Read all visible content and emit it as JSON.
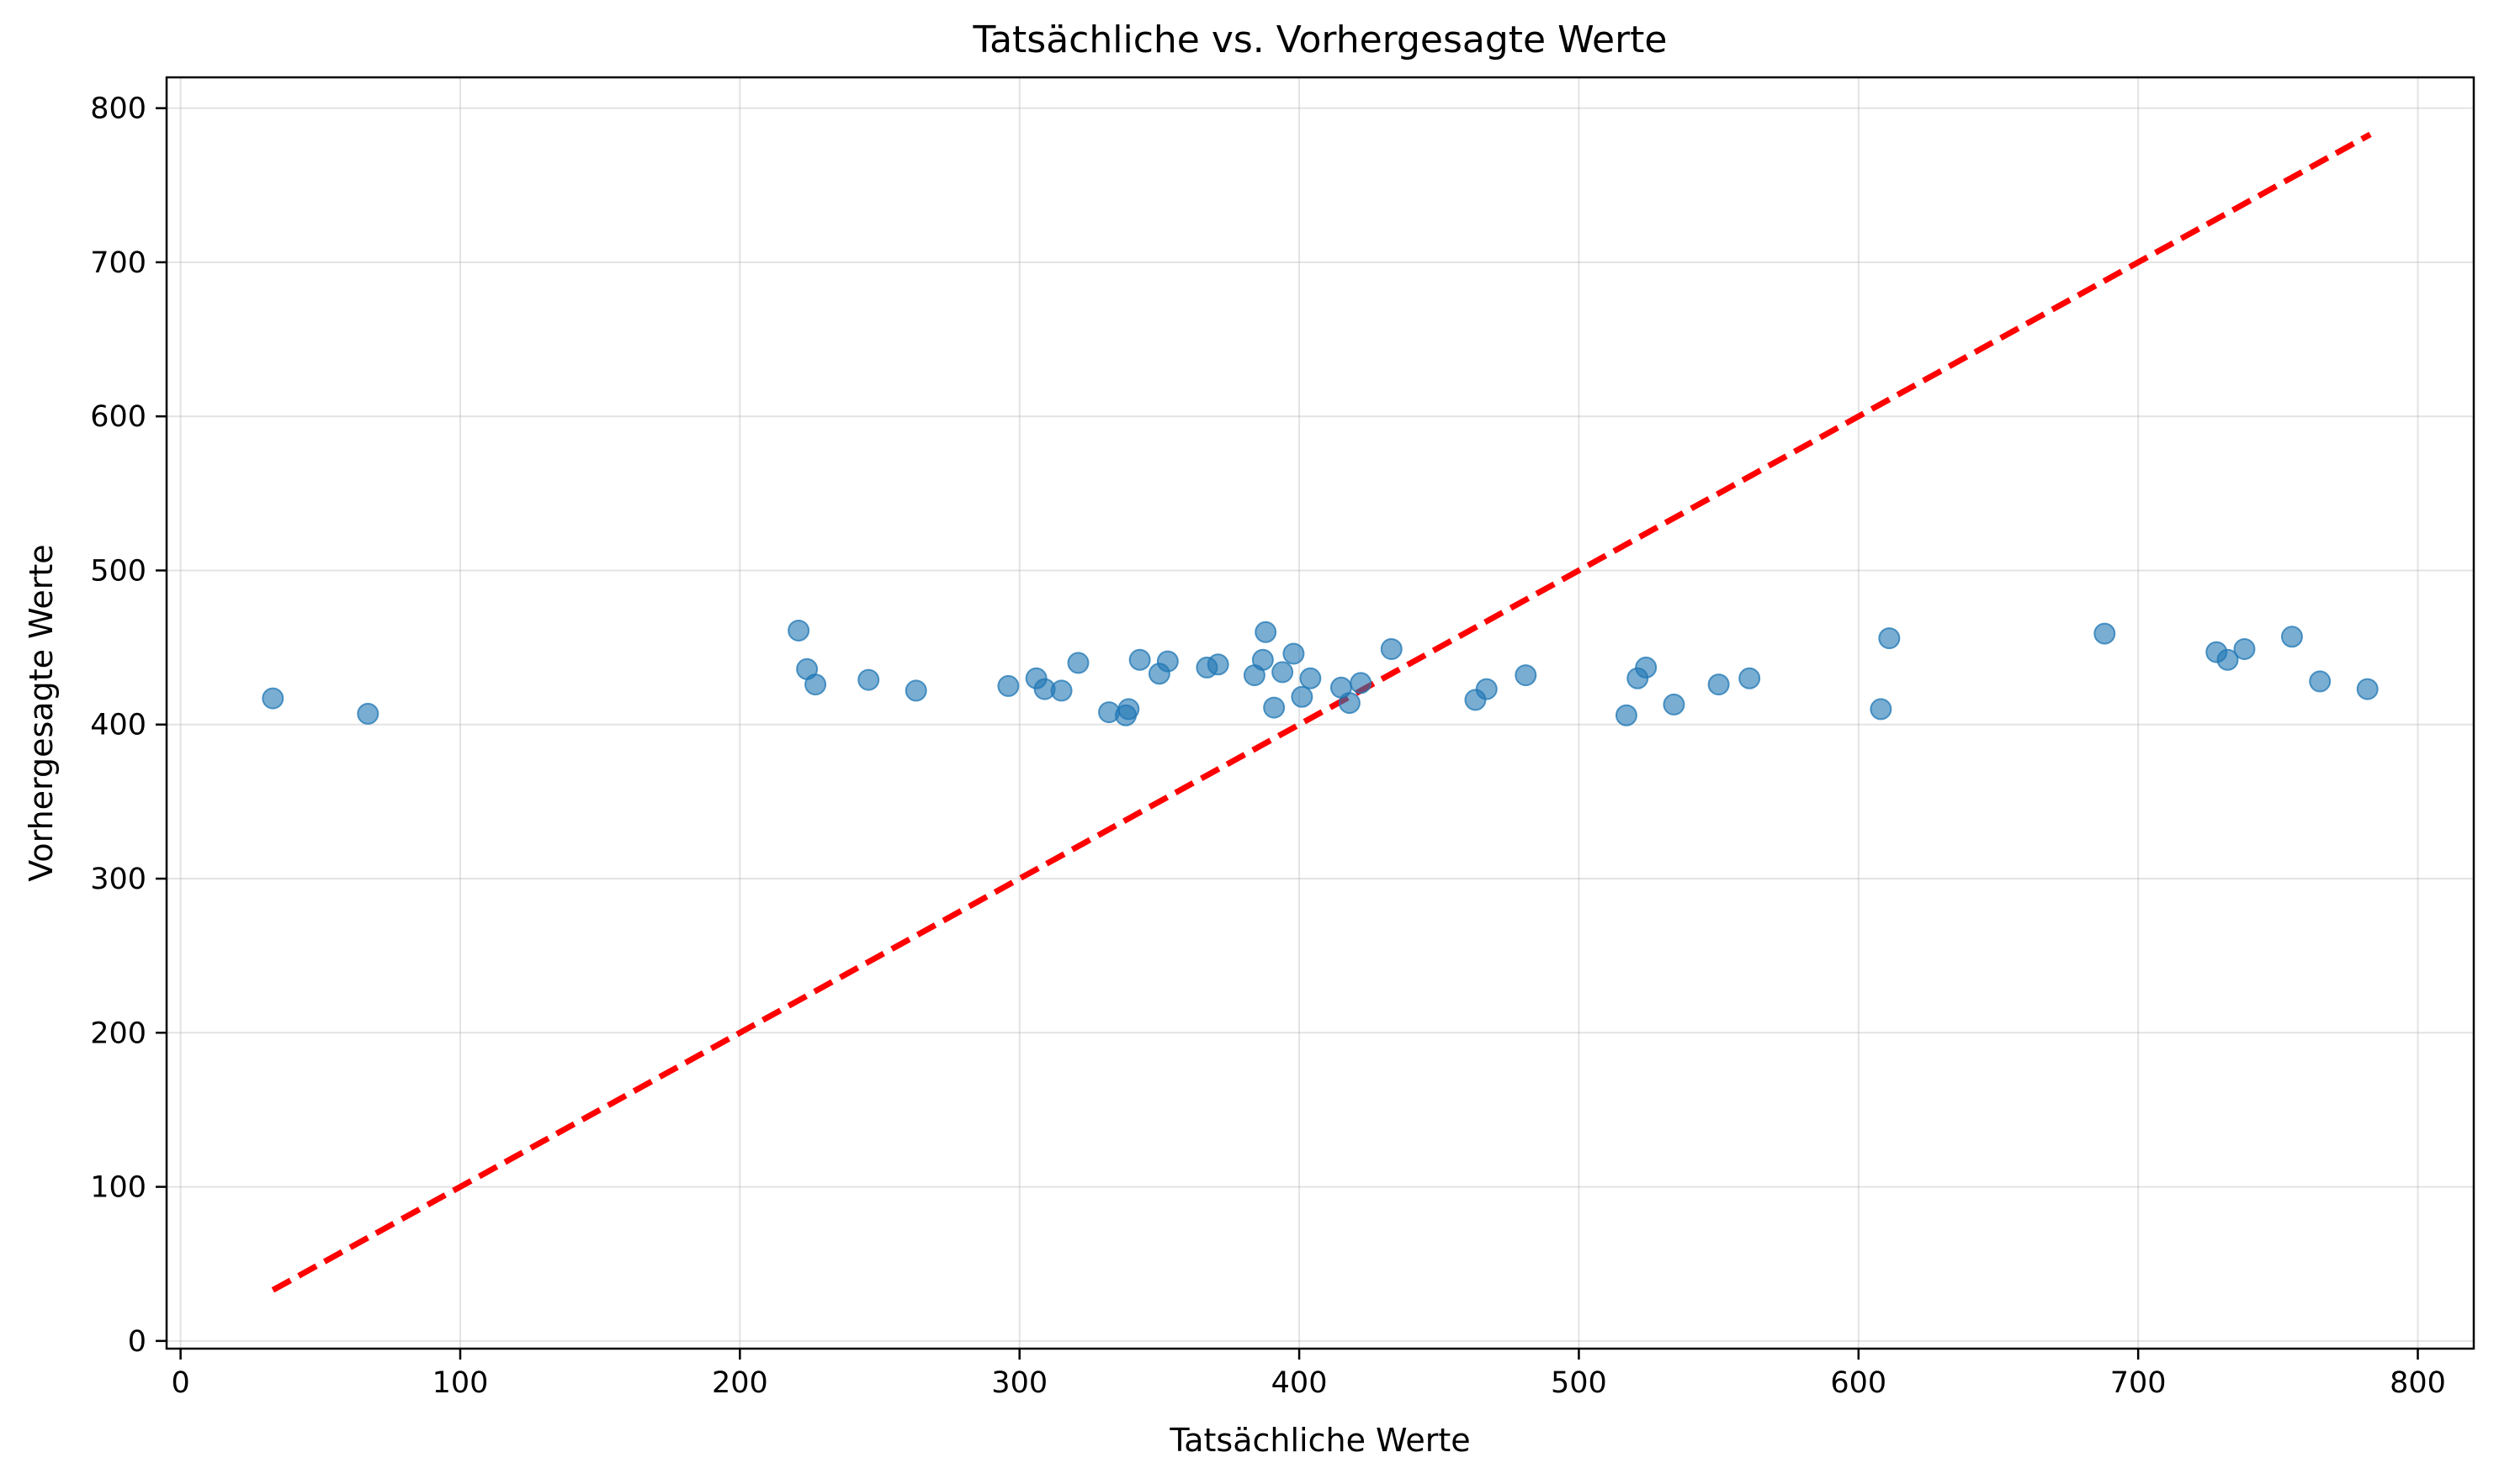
{
  "chart_data": {
    "type": "scatter",
    "title": "Tatsächliche vs. Vorhergesagte Werte",
    "xlabel": "Tatsächliche Werte",
    "ylabel": "Vorhergesagte Werte",
    "xlim": [
      -5,
      820
    ],
    "ylim": [
      -5,
      820
    ],
    "xticks": [
      0,
      100,
      200,
      300,
      400,
      500,
      600,
      700,
      800
    ],
    "yticks": [
      0,
      100,
      200,
      300,
      400,
      500,
      600,
      700,
      800
    ],
    "grid": true,
    "point_color": "#1f77b4",
    "reference_line": {
      "x": [
        33,
        783
      ],
      "y": [
        33,
        783
      ],
      "color": "#ff0000",
      "style": "dashed"
    },
    "points": [
      {
        "x": 33,
        "y": 417
      },
      {
        "x": 67,
        "y": 407
      },
      {
        "x": 221,
        "y": 461
      },
      {
        "x": 224,
        "y": 436
      },
      {
        "x": 227,
        "y": 426
      },
      {
        "x": 246,
        "y": 429
      },
      {
        "x": 263,
        "y": 422
      },
      {
        "x": 296,
        "y": 425
      },
      {
        "x": 306,
        "y": 430
      },
      {
        "x": 309,
        "y": 423
      },
      {
        "x": 315,
        "y": 422
      },
      {
        "x": 321,
        "y": 440
      },
      {
        "x": 332,
        "y": 408
      },
      {
        "x": 338,
        "y": 406
      },
      {
        "x": 339,
        "y": 410
      },
      {
        "x": 343,
        "y": 442
      },
      {
        "x": 350,
        "y": 433
      },
      {
        "x": 353,
        "y": 441
      },
      {
        "x": 367,
        "y": 437
      },
      {
        "x": 371,
        "y": 439
      },
      {
        "x": 384,
        "y": 432
      },
      {
        "x": 387,
        "y": 442
      },
      {
        "x": 388,
        "y": 460
      },
      {
        "x": 391,
        "y": 411
      },
      {
        "x": 394,
        "y": 434
      },
      {
        "x": 398,
        "y": 446
      },
      {
        "x": 401,
        "y": 418
      },
      {
        "x": 404,
        "y": 430
      },
      {
        "x": 415,
        "y": 424
      },
      {
        "x": 418,
        "y": 414
      },
      {
        "x": 422,
        "y": 427
      },
      {
        "x": 433,
        "y": 449
      },
      {
        "x": 463,
        "y": 416
      },
      {
        "x": 467,
        "y": 423
      },
      {
        "x": 481,
        "y": 432
      },
      {
        "x": 517,
        "y": 406
      },
      {
        "x": 521,
        "y": 430
      },
      {
        "x": 524,
        "y": 437
      },
      {
        "x": 534,
        "y": 413
      },
      {
        "x": 550,
        "y": 426
      },
      {
        "x": 561,
        "y": 430
      },
      {
        "x": 608,
        "y": 410
      },
      {
        "x": 611,
        "y": 456
      },
      {
        "x": 688,
        "y": 459
      },
      {
        "x": 728,
        "y": 447
      },
      {
        "x": 732,
        "y": 442
      },
      {
        "x": 738,
        "y": 449
      },
      {
        "x": 755,
        "y": 457
      },
      {
        "x": 765,
        "y": 428
      },
      {
        "x": 782,
        "y": 423
      }
    ]
  }
}
